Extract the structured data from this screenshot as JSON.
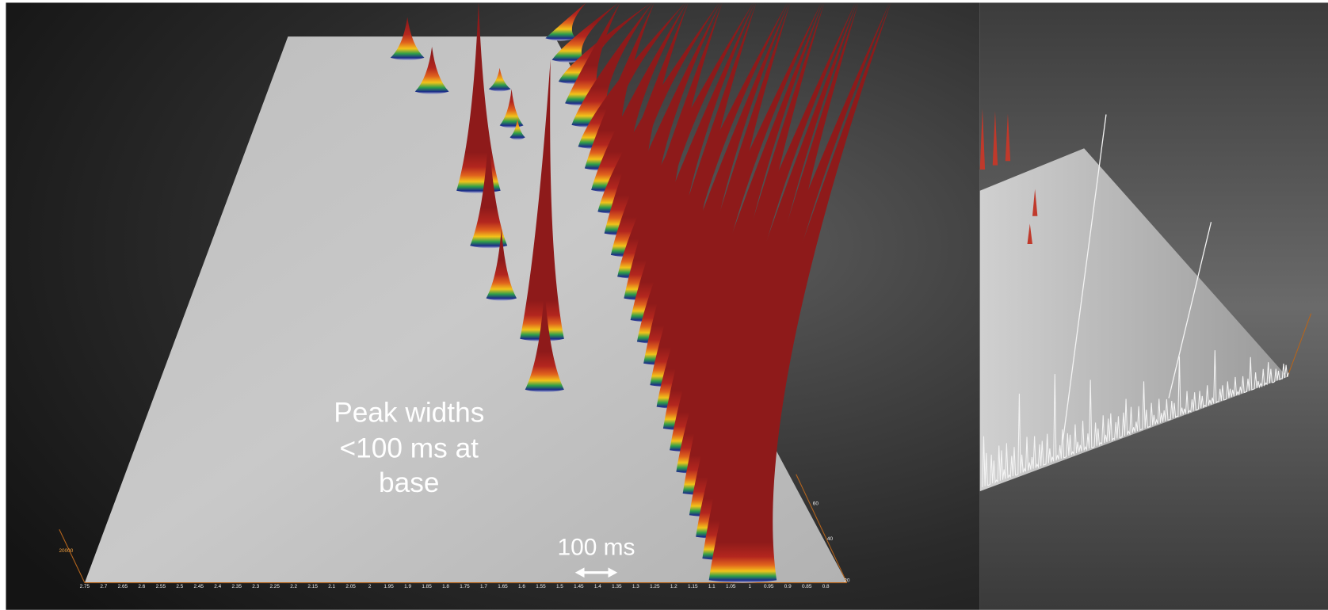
{
  "annotation": {
    "lines": [
      "Peak widths",
      "<100 ms at",
      "base"
    ]
  },
  "scale_bar": "100 ms",
  "x_axis": {
    "ticks": [
      "2.75",
      "2.7",
      "2.65",
      "2.6",
      "2.55",
      "2.5",
      "2.45",
      "2.4",
      "2.35",
      "2.3",
      "2.25",
      "2.2",
      "2.15",
      "2.1",
      "2.05",
      "2",
      "1.95",
      "1.9",
      "1.85",
      "1.8",
      "1.75",
      "1.7",
      "1.65",
      "1.6",
      "1.55",
      "1.5",
      "1.45",
      "1.4",
      "1.35",
      "1.3",
      "1.25",
      "1.2",
      "1.15",
      "1.1",
      "1.05",
      "1",
      "0.95",
      "0.9",
      "0.85",
      "0.8"
    ]
  },
  "depth_axis": {
    "ticks": [
      "20",
      "40",
      "60"
    ]
  },
  "intensity_tick": "20000"
}
